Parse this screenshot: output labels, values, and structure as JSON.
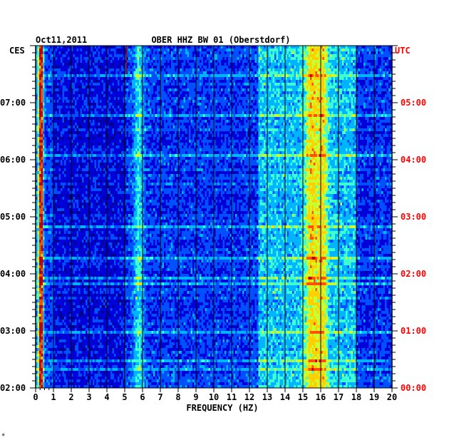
{
  "chart_data": {
    "type": "heatmap",
    "date": "Oct11,2011",
    "title": "OBER HHZ BW 01 (Oberstdorf)",
    "left_axis_label": "CES",
    "right_axis_label": "UTC",
    "xlabel": "FREQUENCY (HZ)",
    "xlim": [
      0,
      20
    ],
    "x_ticks": [
      "0",
      "1",
      "2",
      "3",
      "4",
      "5",
      "6",
      "7",
      "8",
      "9",
      "10",
      "11",
      "12",
      "13",
      "14",
      "15",
      "16",
      "17",
      "18",
      "19",
      "20"
    ],
    "left_ticks": [
      "07:00",
      "06:00",
      "05:00",
      "04:00",
      "03:00",
      "02:00"
    ],
    "right_ticks": [
      "05:00",
      "04:00",
      "03:00",
      "02:00",
      "01:00",
      "00:00"
    ],
    "time_range_ces": [
      "02:00",
      "07:45"
    ],
    "colormap": [
      "#00008c",
      "#0000d8",
      "#0050ff",
      "#00b4ff",
      "#40ffd0",
      "#c8ff30",
      "#ffd000",
      "#ff5000",
      "#c00000"
    ],
    "dominant_bands_hz": [
      {
        "center": 0.3,
        "strength": "very high"
      },
      {
        "center": 5.8,
        "strength": "medium"
      },
      {
        "center": 15.5,
        "strength": "high"
      },
      {
        "center": 16.0,
        "strength": "high"
      }
    ],
    "left_axis_color": "#000000",
    "right_axis_color": "#ff0000"
  },
  "footer_mark": "*"
}
